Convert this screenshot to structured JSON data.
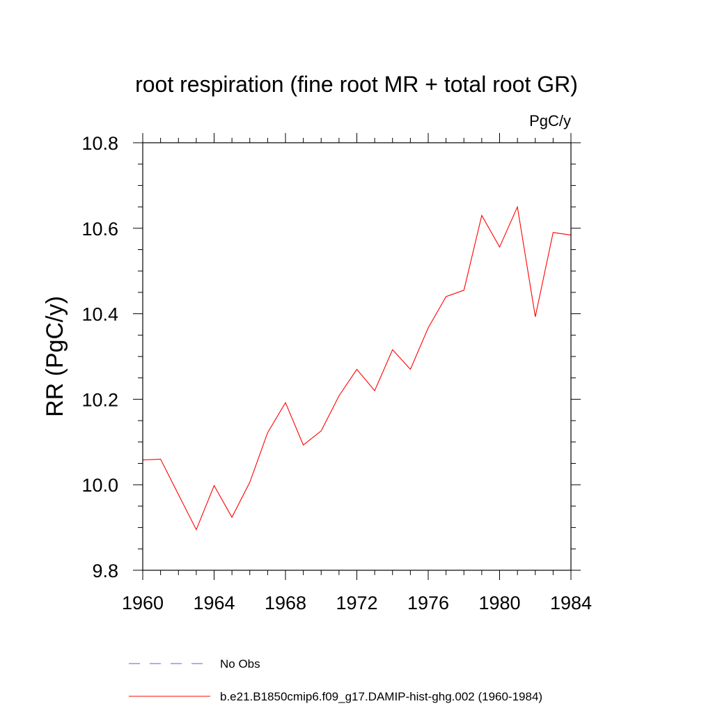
{
  "chart_data": {
    "type": "line",
    "title": "root respiration (fine root MR + total root GR)",
    "units": "PgC/y",
    "ylabel": "RR  (PgC/y)",
    "xlabel": "",
    "xlim": [
      1960,
      1984
    ],
    "ylim": [
      9.8,
      10.8
    ],
    "x_ticks": [
      "1960",
      "1964",
      "1968",
      "1972",
      "1976",
      "1980",
      "1984"
    ],
    "y_ticks": [
      "9.8",
      "10.0",
      "10.2",
      "10.4",
      "10.6",
      "10.8"
    ],
    "grid": false,
    "series": [
      {
        "name": "b.e21.B1850cmip6.f09_g17.DAMIP-hist-ghg.002 (1960-1984)",
        "color": "#ff0000",
        "x": [
          1960,
          1961,
          1962,
          1963,
          1964,
          1965,
          1966,
          1967,
          1968,
          1969,
          1970,
          1971,
          1972,
          1973,
          1974,
          1975,
          1976,
          1977,
          1978,
          1979,
          1980,
          1981,
          1982,
          1983,
          1984
        ],
        "y": [
          10.058,
          10.06,
          9.977,
          9.895,
          9.998,
          9.924,
          10.006,
          10.122,
          10.192,
          10.093,
          10.126,
          10.208,
          10.27,
          10.22,
          10.316,
          10.27,
          10.367,
          10.44,
          10.455,
          10.63,
          10.556,
          10.65,
          10.393,
          10.59,
          10.584
        ]
      }
    ],
    "legend": [
      {
        "label": "No Obs",
        "color": "#6a5acd",
        "style": "dashed"
      },
      {
        "label": "b.e21.B1850cmip6.f09_g17.DAMIP-hist-ghg.002 (1960-1984)",
        "color": "#ff0000",
        "style": "solid"
      }
    ],
    "legend_position": "bottom"
  }
}
